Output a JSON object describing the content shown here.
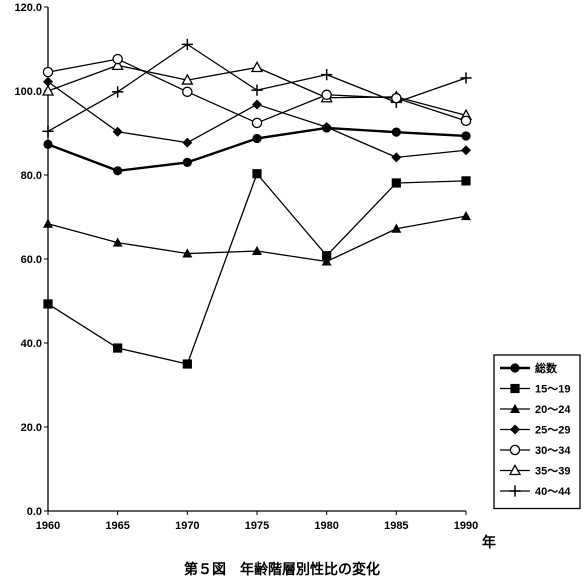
{
  "chart_data": {
    "type": "line",
    "title": "第５図　年齢階層別性比の変化",
    "xlabel": "年",
    "ylabel": "",
    "x": [
      1960,
      1965,
      1970,
      1975,
      1980,
      1985,
      1990
    ],
    "x_tick_labels": [
      "1960",
      "1965",
      "1970",
      "1975",
      "1980",
      "1985",
      "1990"
    ],
    "ylim": [
      0,
      120
    ],
    "y_ticks": [
      0,
      20,
      40,
      60,
      80,
      100,
      120
    ],
    "y_tick_labels": [
      "0.0",
      "20.0",
      "40.0",
      "60.0",
      "80.0",
      "100.0",
      "120.0"
    ],
    "grid": false,
    "legend_position": "bottom-right",
    "series": [
      {
        "name": "総数",
        "marker": "filled-circle",
        "values": [
          87.3,
          81.0,
          83.0,
          88.7,
          91.2,
          90.2,
          89.3
        ]
      },
      {
        "name": "15～19",
        "marker": "filled-square",
        "values": [
          49.3,
          38.8,
          35.0,
          80.3,
          60.8,
          78.1,
          78.6
        ]
      },
      {
        "name": "20～24",
        "marker": "filled-triangle",
        "values": [
          68.4,
          63.9,
          61.3,
          61.9,
          59.4,
          67.2,
          70.2
        ]
      },
      {
        "name": "25～29",
        "marker": "filled-diamond",
        "values": [
          102.2,
          90.3,
          87.7,
          96.8,
          91.4,
          84.2,
          85.9
        ]
      },
      {
        "name": "30～34",
        "marker": "open-circle",
        "values": [
          104.5,
          107.6,
          99.8,
          92.4,
          99.1,
          98.3,
          92.9
        ]
      },
      {
        "name": "35～39",
        "marker": "open-triangle",
        "values": [
          100.0,
          106.1,
          102.6,
          105.6,
          98.4,
          98.6,
          94.2
        ]
      },
      {
        "name": "40～44",
        "marker": "plus",
        "values": [
          90.4,
          99.8,
          111.1,
          100.2,
          103.9,
          97.3,
          103.1
        ]
      }
    ]
  }
}
